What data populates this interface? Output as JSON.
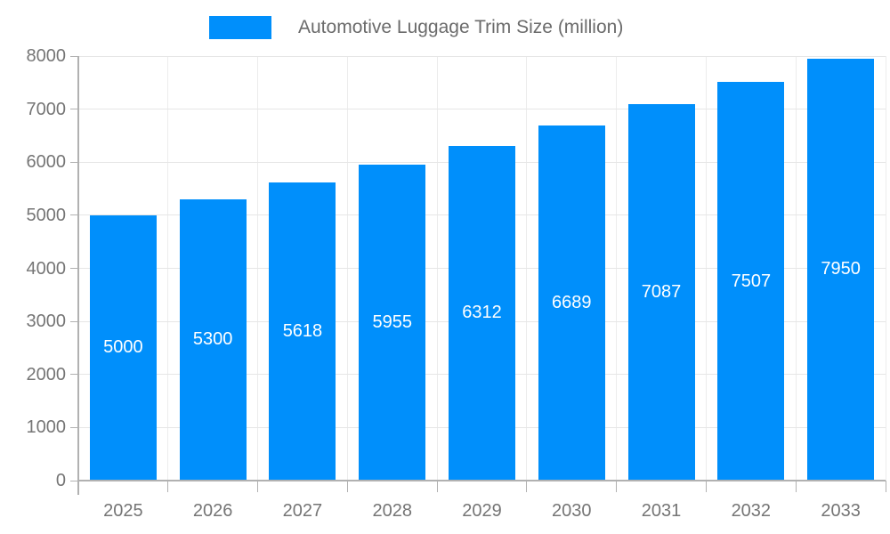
{
  "chart_data": {
    "type": "bar",
    "title": "Automotive Luggage Trim Size (million)",
    "categories": [
      "2025",
      "2026",
      "2027",
      "2028",
      "2029",
      "2030",
      "2031",
      "2032",
      "2033"
    ],
    "values": [
      5000,
      5300,
      5618,
      5955,
      6312,
      6689,
      7087,
      7507,
      7950
    ],
    "xlabel": "",
    "ylabel": "",
    "ylim": [
      0,
      8000
    ],
    "ytick_step": 1000,
    "ytick_labels": [
      "0",
      "1000",
      "2000",
      "3000",
      "4000",
      "5000",
      "6000",
      "7000",
      "8000"
    ],
    "legend_position": "top",
    "grid": true,
    "bar_label_position": "inside-center",
    "colors": {
      "bar": "#008FFB",
      "bar_label": "#FFFFFF",
      "axis_text": "#757575",
      "legend_text": "#6B6B6B",
      "grid_horizontal": "#E6E6E6",
      "grid_vertical": "#ECECEC",
      "axis_line": "#B1B1B1",
      "background": "#FFFFFF"
    }
  }
}
